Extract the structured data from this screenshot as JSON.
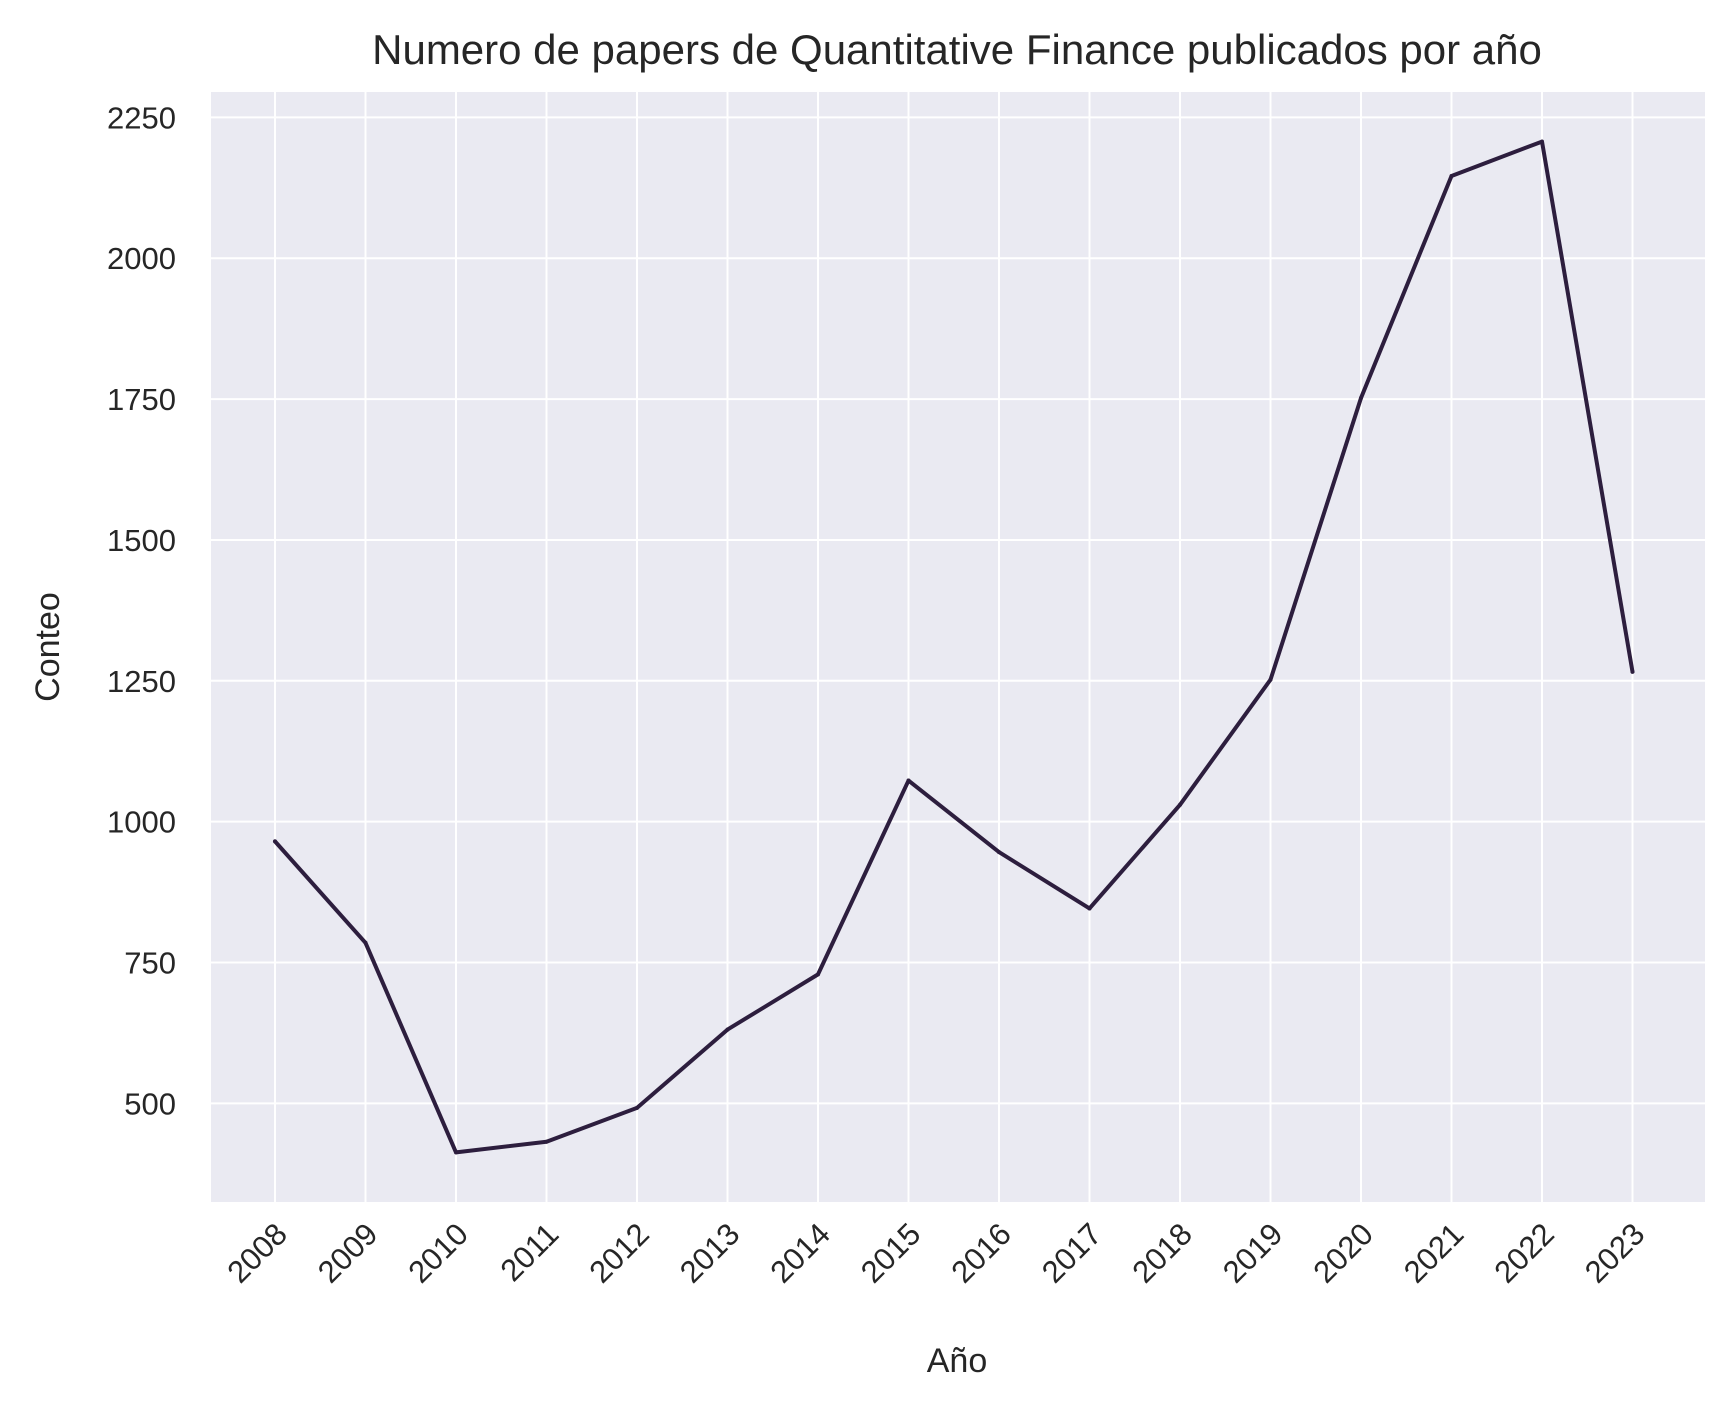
{
  "chart_data": {
    "type": "line",
    "title": "Numero de papers de Quantitative Finance publicados por año",
    "xlabel": "Año",
    "ylabel": "Conteo",
    "categories": [
      "2008",
      "2009",
      "2010",
      "2011",
      "2012",
      "2013",
      "2014",
      "2015",
      "2016",
      "2017",
      "2018",
      "2019",
      "2020",
      "2021",
      "2022",
      "2023"
    ],
    "series": [
      {
        "values": [
          965,
          785,
          413,
          432,
          492,
          631,
          729,
          1073,
          946,
          846,
          1030,
          1252,
          1752,
          2146,
          2207,
          1266
        ],
        "color": "#2d1e3e"
      }
    ],
    "yticks": [
      500,
      750,
      1000,
      1250,
      1500,
      1750,
      2000,
      2250
    ],
    "ylim": [
      325,
      2295
    ],
    "grid": true,
    "background": "#eaeaf2",
    "gridcolor": "#ffffff"
  }
}
